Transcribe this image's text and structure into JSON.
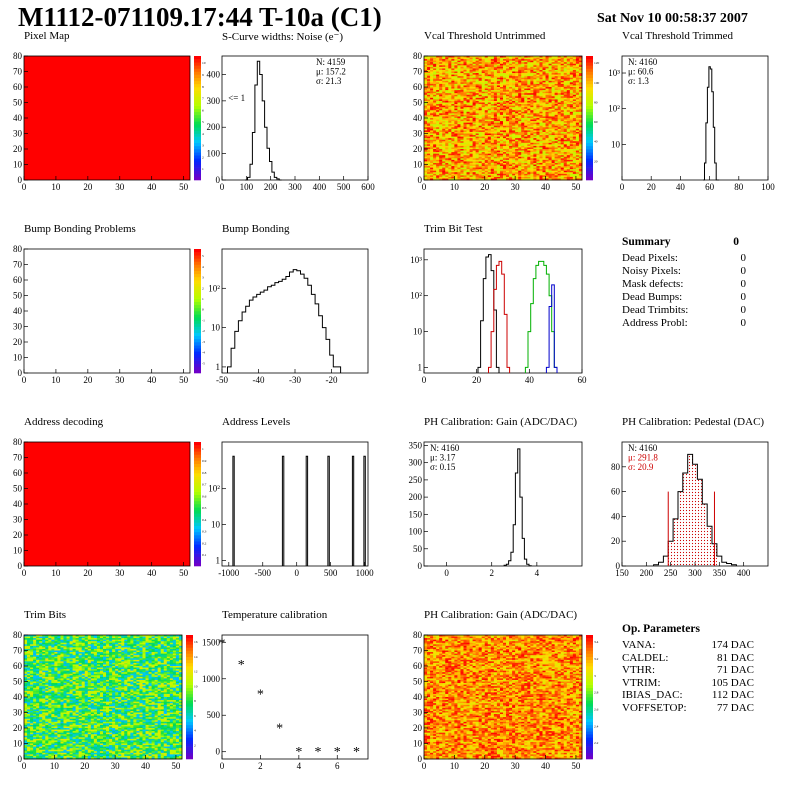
{
  "header": {
    "title": "M1112-071109.17:44 T-10a (C1)",
    "date": "Sat Nov 10 00:58:37 2007"
  },
  "colors": {
    "hist_line": "#000000",
    "red": "#cc0000",
    "green": "#00b000",
    "blue": "#0000cc",
    "map_red": "#ff0000"
  },
  "chart_data": [
    {
      "id": "pixel-map",
      "type": "heatmap",
      "title": "Pixel Map",
      "xlim": [
        0,
        52
      ],
      "ylim": [
        0,
        80
      ],
      "xticks": [
        "0",
        "10",
        "20",
        "30",
        "40",
        "50"
      ],
      "yticks": [
        "0",
        "10",
        "20",
        "30",
        "40",
        "50",
        "60",
        "70",
        "80"
      ],
      "fill": "uniform",
      "value": 10,
      "zticks": [
        "1",
        "2",
        "3",
        "4",
        "5",
        "6",
        "7",
        "8",
        "9",
        "10"
      ]
    },
    {
      "id": "scurve-widths",
      "type": "line",
      "title": "S-Curve widths: Noise (e⁻)",
      "xlim": [
        0,
        600
      ],
      "ylim": [
        0,
        470
      ],
      "xticks": [
        "0",
        "100",
        "200",
        "300",
        "400",
        "500",
        "600"
      ],
      "yticks": [
        "0",
        "100",
        "200",
        "300",
        "400"
      ],
      "stats": [
        "N: 4159",
        "μ: 157.2",
        "σ: 21.3"
      ],
      "annotation": "<= 1",
      "x": [
        100,
        110,
        120,
        130,
        140,
        150,
        160,
        170,
        180,
        190,
        200,
        210,
        220,
        230,
        240
      ],
      "y": [
        0,
        10,
        60,
        180,
        360,
        450,
        400,
        300,
        200,
        120,
        70,
        30,
        10,
        4,
        0
      ]
    },
    {
      "id": "vcal-untrimmed",
      "type": "heatmap",
      "title": "Vcal Threshold Untrimmed",
      "xlim": [
        0,
        52
      ],
      "ylim": [
        0,
        80
      ],
      "xticks": [
        "0",
        "10",
        "20",
        "30",
        "40",
        "50"
      ],
      "yticks": [
        "0",
        "10",
        "20",
        "30",
        "40",
        "50",
        "60",
        "70",
        "80"
      ],
      "fill": "noisy-orange",
      "zticks": [
        "20",
        "40",
        "60",
        "80",
        "100",
        "120"
      ]
    },
    {
      "id": "vcal-trimmed",
      "type": "line",
      "title": "Vcal Threshold Trimmed",
      "log_y": true,
      "xlim": [
        0,
        100
      ],
      "ylim": [
        1,
        3000
      ],
      "xticks": [
        "0",
        "20",
        "40",
        "60",
        "80",
        "100"
      ],
      "ytick_values": [
        10,
        100,
        1000
      ],
      "yticks": [
        "10",
        "10²",
        "10³"
      ],
      "stats": [
        "N: 4160",
        "μ: 60.6",
        "σ:  1.3"
      ],
      "x": [
        56,
        57,
        58,
        59,
        60,
        61,
        62,
        63,
        64,
        65,
        66
      ],
      "y": [
        1,
        3,
        40,
        400,
        1500,
        1300,
        300,
        30,
        3,
        1,
        1
      ]
    },
    {
      "id": "bump-bonding-problems",
      "type": "heatmap",
      "title": "Bump Bonding Problems",
      "xlim": [
        0,
        52
      ],
      "ylim": [
        0,
        80
      ],
      "xticks": [
        "0",
        "10",
        "20",
        "30",
        "40",
        "50"
      ],
      "yticks": [
        "0",
        "10",
        "20",
        "30",
        "40",
        "50",
        "60",
        "70",
        "80"
      ],
      "fill": "empty",
      "zticks": [
        "-5",
        "-4",
        "-3",
        "-2",
        "-1",
        "0",
        "1",
        "2",
        "3",
        "4",
        "5"
      ]
    },
    {
      "id": "bump-bonding",
      "type": "line",
      "title": "Bump Bonding",
      "log_y": true,
      "xlim": [
        -50,
        -10
      ],
      "ylim": [
        0.7,
        1000
      ],
      "xticks": [
        "-50",
        "-40",
        "-30",
        "-20"
      ],
      "xtick_values": [
        -50,
        -40,
        -30,
        -20
      ],
      "ytick_values": [
        1,
        10,
        100
      ],
      "yticks": [
        "1",
        "10",
        "10²"
      ],
      "x": [
        -48,
        -47,
        -46,
        -45,
        -44,
        -43,
        -42,
        -41,
        -40,
        -39,
        -38,
        -37,
        -36,
        -35,
        -34,
        -33,
        -32,
        -31,
        -30,
        -29,
        -28,
        -27,
        -26,
        -25,
        -24,
        -23,
        -22,
        -21,
        -20,
        -19,
        -18
      ],
      "y": [
        1,
        3,
        8,
        15,
        25,
        35,
        50,
        60,
        70,
        80,
        90,
        110,
        120,
        140,
        150,
        170,
        200,
        260,
        300,
        280,
        230,
        180,
        120,
        70,
        40,
        20,
        10,
        5,
        2,
        1,
        1
      ]
    },
    {
      "id": "trim-bit-test",
      "type": "line",
      "title": "Trim Bit Test",
      "log_y": true,
      "xlim": [
        0,
        60
      ],
      "ylim": [
        0.7,
        2000
      ],
      "xticks": [
        "0",
        "20",
        "40",
        "60"
      ],
      "xtick_values": [
        0,
        20,
        40,
        60
      ],
      "ytick_values": [
        1,
        10,
        100,
        1000
      ],
      "yticks": [
        "1",
        "10",
        "10²",
        "10³"
      ],
      "series": [
        {
          "color": "black",
          "x": [
            21,
            22,
            23,
            24,
            25,
            26,
            27,
            28
          ],
          "y": [
            1,
            20,
            300,
            1200,
            1400,
            500,
            40,
            1
          ]
        },
        {
          "color": "red",
          "x": [
            25,
            26,
            27,
            28,
            29,
            30,
            31,
            32
          ],
          "y": [
            1,
            10,
            150,
            700,
            900,
            400,
            30,
            1
          ]
        },
        {
          "color": "green",
          "x": [
            39,
            40,
            41,
            42,
            43,
            44,
            45,
            46,
            47,
            48,
            49,
            50
          ],
          "y": [
            1,
            10,
            60,
            300,
            700,
            900,
            900,
            700,
            400,
            100,
            10,
            1
          ]
        },
        {
          "color": "blue",
          "x": [
            47,
            48,
            49,
            50
          ],
          "y": [
            1,
            50,
            200,
            1
          ]
        }
      ]
    },
    {
      "id": "address-decoding",
      "type": "heatmap",
      "title": "Address decoding",
      "xlim": [
        0,
        52
      ],
      "ylim": [
        0,
        80
      ],
      "xticks": [
        "0",
        "10",
        "20",
        "30",
        "40",
        "50"
      ],
      "yticks": [
        "0",
        "10",
        "20",
        "30",
        "40",
        "50",
        "60",
        "70",
        "80"
      ],
      "fill": "uniform",
      "value": 1,
      "zticks": [
        "0.1",
        "0.2",
        "0.3",
        "0.4",
        "0.5",
        "0.6",
        "0.7",
        "0.8",
        "0.9",
        "1"
      ]
    },
    {
      "id": "address-levels",
      "type": "line",
      "title": "Address Levels",
      "log_y": true,
      "xlim": [
        -1100,
        1050
      ],
      "ylim": [
        0.7,
        2000
      ],
      "xticks": [
        "-1000",
        "-500",
        "0",
        "500",
        "1000"
      ],
      "xtick_values": [
        -1000,
        -500,
        0,
        500,
        1000
      ],
      "ytick_values": [
        1,
        10,
        100
      ],
      "yticks": [
        "1",
        "10",
        "10²"
      ],
      "peaks": [
        -930,
        -200,
        150,
        470,
        830,
        1000
      ],
      "peak_height": 800
    },
    {
      "id": "ph-gain-1d",
      "type": "line",
      "title": "PH Calibration: Gain (ADC/DAC)",
      "xlim": [
        -1,
        6
      ],
      "ylim": [
        0,
        360
      ],
      "xticks": [
        "0",
        "2",
        "4"
      ],
      "xtick_values": [
        0,
        2,
        4
      ],
      "yticks": [
        "0",
        "50",
        "100",
        "150",
        "200",
        "250",
        "300",
        "350"
      ],
      "stats": [
        "N: 4160",
        "μ: 3.17",
        "σ: 0.15"
      ],
      "x": [
        2.6,
        2.7,
        2.8,
        2.9,
        3.0,
        3.1,
        3.2,
        3.3,
        3.4,
        3.5,
        3.6,
        3.7
      ],
      "y": [
        2,
        5,
        15,
        40,
        120,
        270,
        340,
        200,
        80,
        20,
        5,
        1
      ]
    },
    {
      "id": "ph-pedestal",
      "type": "line",
      "title": "PH Calibration: Pedestal (DAC)",
      "xlim": [
        150,
        450
      ],
      "ylim": [
        0,
        100
      ],
      "xticks": [
        "150",
        "200",
        "250",
        "300",
        "350",
        "400"
      ],
      "xtick_values": [
        150,
        200,
        250,
        300,
        350,
        400
      ],
      "yticks": [
        "0",
        "20",
        "40",
        "60",
        "80"
      ],
      "stats": [
        "N: 4160",
        "μ: 291.8",
        "σ: 20.9"
      ],
      "cut_lines": [
        245,
        340
      ],
      "x": [
        220,
        230,
        240,
        250,
        260,
        270,
        280,
        290,
        300,
        310,
        320,
        330,
        340,
        350,
        360,
        370,
        380
      ],
      "y": [
        1,
        3,
        8,
        20,
        38,
        60,
        75,
        90,
        82,
        70,
        50,
        32,
        18,
        8,
        3,
        2,
        1
      ]
    },
    {
      "id": "trim-bits",
      "type": "heatmap",
      "title": "Trim Bits",
      "xlim": [
        0,
        52
      ],
      "ylim": [
        0,
        80
      ],
      "xticks": [
        "0",
        "10",
        "20",
        "30",
        "40",
        "50"
      ],
      "yticks": [
        "0",
        "10",
        "20",
        "30",
        "40",
        "50",
        "60",
        "70",
        "80"
      ],
      "fill": "noisy-green",
      "zticks": [
        "2",
        "4",
        "6",
        "8",
        "10",
        "12",
        "14",
        "16"
      ]
    },
    {
      "id": "temperature-calibration",
      "type": "scatter",
      "title": "Temperature calibration",
      "xlim": [
        0,
        7.6
      ],
      "ylim": [
        -100,
        1600
      ],
      "xticks": [
        "0",
        "2",
        "4",
        "6"
      ],
      "xtick_values": [
        0,
        2,
        4,
        6
      ],
      "yticks": [
        "0",
        "500",
        "1000",
        "1500"
      ],
      "ytick_values": [
        0,
        500,
        1000,
        1500
      ],
      "x": [
        0,
        1,
        2,
        3,
        4,
        5,
        6,
        7
      ],
      "y": [
        1500,
        1200,
        800,
        330,
        10,
        10,
        10,
        10
      ]
    },
    {
      "id": "ph-gain-map",
      "type": "heatmap",
      "title": "PH Calibration: Gain (ADC/DAC)",
      "xlim": [
        0,
        52
      ],
      "ylim": [
        0,
        80
      ],
      "xticks": [
        "0",
        "10",
        "20",
        "30",
        "40",
        "50"
      ],
      "yticks": [
        "0",
        "10",
        "20",
        "30",
        "40",
        "50",
        "60",
        "70",
        "80"
      ],
      "fill": "noisy-red",
      "zticks": [
        "2.2",
        "2.4",
        "2.6",
        "2.8",
        "3",
        "3.2",
        "3.4"
      ]
    }
  ],
  "summary": {
    "title": "Summary",
    "value": "0",
    "rows": [
      {
        "label": "Dead Pixels:",
        "value": "0"
      },
      {
        "label": "Noisy Pixels:",
        "value": "0"
      },
      {
        "label": "Mask defects:",
        "value": "0"
      },
      {
        "label": "Dead Bumps:",
        "value": "0"
      },
      {
        "label": "Dead Trimbits:",
        "value": "0"
      },
      {
        "label": "Address Probl:",
        "value": "0"
      }
    ]
  },
  "op_params": {
    "title": "Op. Parameters",
    "rows": [
      {
        "label": "VANA:",
        "value": "174 DAC"
      },
      {
        "label": "CALDEL:",
        "value": "81 DAC"
      },
      {
        "label": "VTHR:",
        "value": "71 DAC"
      },
      {
        "label": "VTRIM:",
        "value": "105 DAC"
      },
      {
        "label": "IBIAS_DAC:",
        "value": "112 DAC"
      },
      {
        "label": "VOFFSETOP:",
        "value": "77 DAC"
      }
    ]
  }
}
